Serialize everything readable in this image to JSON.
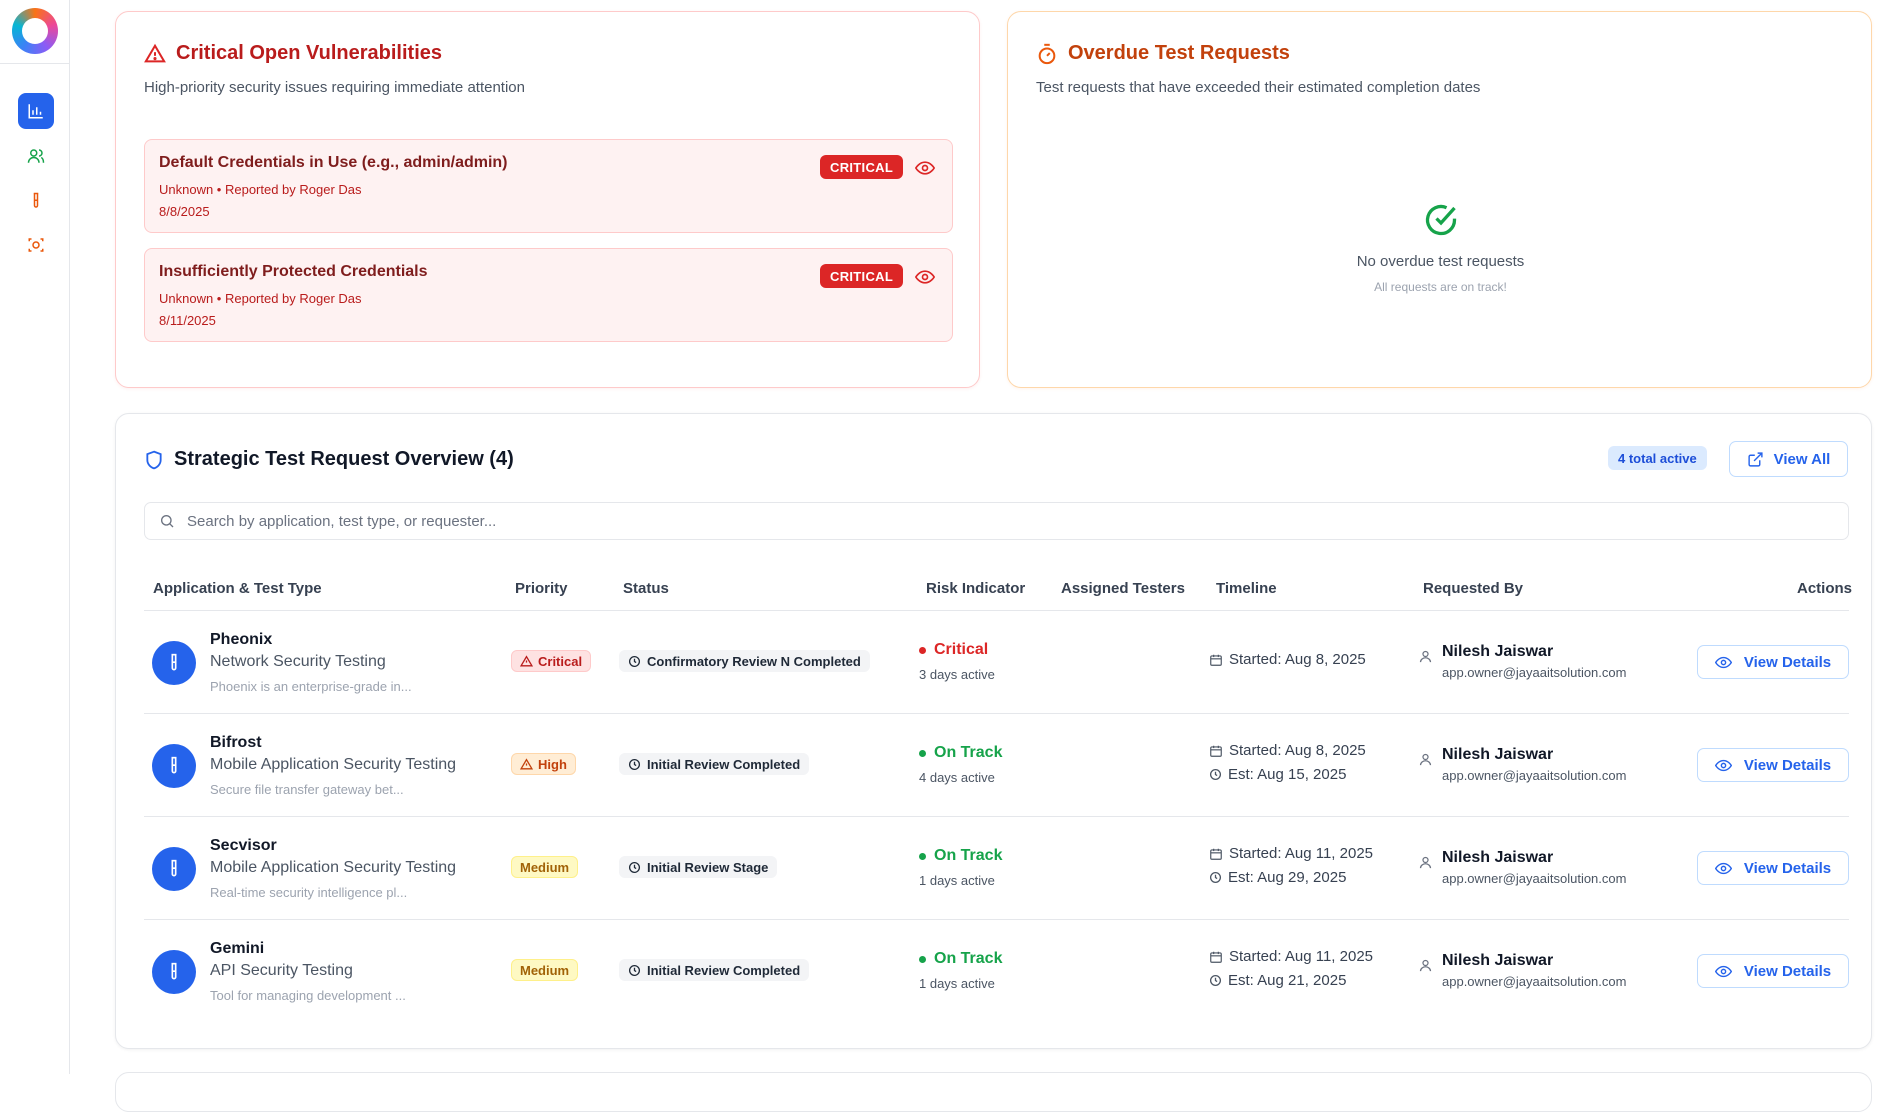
{
  "nav": {
    "items": [
      {
        "name": "analytics",
        "active": true
      },
      {
        "name": "users",
        "active": false
      },
      {
        "name": "test-tube",
        "active": false
      },
      {
        "name": "scan",
        "active": false
      }
    ]
  },
  "vulnerabilities": {
    "title": "Critical Open Vulnerabilities",
    "subtitle": "High-priority security issues requiring immediate attention",
    "items": [
      {
        "title": "Default Credentials in Use (e.g., admin/admin)",
        "meta": "Unknown • Reported by Roger Das",
        "date": "8/8/2025",
        "badge": "CRITICAL"
      },
      {
        "title": "Insufficiently Protected Credentials",
        "meta": "Unknown • Reported by Roger Das",
        "date": "8/11/2025",
        "badge": "CRITICAL"
      }
    ]
  },
  "overdue": {
    "title": "Overdue Test Requests",
    "subtitle": "Test requests that have exceeded their estimated completion dates",
    "empty_title": "No overdue test requests",
    "empty_sub": "All requests are on track!"
  },
  "overview": {
    "title": "Strategic Test Request Overview (4)",
    "total_badge": "4 total active",
    "view_all_label": "View All",
    "search_placeholder": "Search by application, test type, or requester...",
    "columns": [
      "Application & Test Type",
      "Priority",
      "Status",
      "Risk Indicator",
      "Assigned Testers",
      "Timeline",
      "Requested By",
      "Actions"
    ],
    "rows": [
      {
        "name": "Pheonix",
        "type": "Network Security Testing",
        "desc": "Phoenix is an enterprise-grade in...",
        "priority": "Critical",
        "status": "Confirmatory Review N Completed",
        "risk": "Critical",
        "risk_days": "3 days active",
        "started": "Started: Aug 8, 2025",
        "est": "",
        "requester": "Nilesh Jaiswar",
        "email": "app.owner@jayaaitsolution.com",
        "action": "View Details"
      },
      {
        "name": "Bifrost",
        "type": "Mobile Application Security Testing",
        "desc": "Secure file transfer gateway bet...",
        "priority": "High",
        "status": "Initial Review Completed",
        "risk": "On Track",
        "risk_days": "4 days active",
        "started": "Started: Aug 8, 2025",
        "est": "Est: Aug 15, 2025",
        "requester": "Nilesh Jaiswar",
        "email": "app.owner@jayaaitsolution.com",
        "action": "View Details"
      },
      {
        "name": "Secvisor",
        "type": "Mobile Application Security Testing",
        "desc": "Real-time security intelligence pl...",
        "priority": "Medium",
        "status": "Initial Review Stage",
        "risk": "On Track",
        "risk_days": "1 days active",
        "started": "Started: Aug 11, 2025",
        "est": "Est: Aug 29, 2025",
        "requester": "Nilesh Jaiswar",
        "email": "app.owner@jayaaitsolution.com",
        "action": "View Details"
      },
      {
        "name": "Gemini",
        "type": "API Security Testing",
        "desc": "Tool for managing development ...",
        "priority": "Medium",
        "status": "Initial Review Completed",
        "risk": "On Track",
        "risk_days": "1 days active",
        "started": "Started: Aug 11, 2025",
        "est": "Est: Aug 21, 2025",
        "requester": "Nilesh Jaiswar",
        "email": "app.owner@jayaaitsolution.com",
        "action": "View Details"
      }
    ]
  },
  "colors": {
    "primary": "#2563eb",
    "critical": "#dc2626",
    "warning": "#ea580c",
    "success": "#16a34a"
  }
}
